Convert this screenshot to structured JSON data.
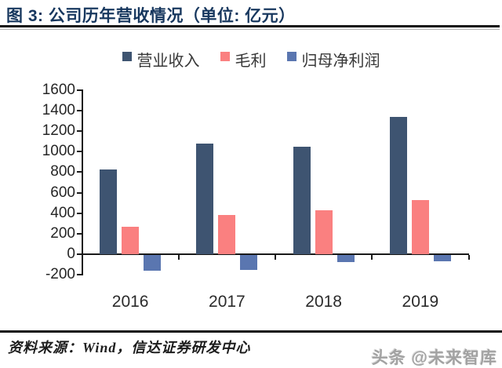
{
  "header": {
    "title": "图 3:  公司历年营收情况（单位:  亿元）",
    "title_color": "#17375E"
  },
  "chart_data": {
    "type": "bar",
    "title": "公司历年营收情况（单位: 亿元）",
    "categories": [
      "2016",
      "2017",
      "2018",
      "2019"
    ],
    "series": [
      {
        "key": "revenue",
        "name": "营业收入",
        "color": "#3E5471",
        "values": [
          830,
          1080,
          1050,
          1340
        ]
      },
      {
        "key": "gross-profit",
        "name": "毛利",
        "color": "#FA8080",
        "values": [
          270,
          380,
          430,
          530
        ]
      },
      {
        "key": "net-profit",
        "name": "归母净利润",
        "color": "#5A76B0",
        "values": [
          -150,
          -140,
          -65,
          -55
        ]
      }
    ],
    "xlabel": "",
    "ylabel": "",
    "ylim": [
      -200,
      1600
    ],
    "ytick_step": 200,
    "grid": false,
    "legend_position": "top",
    "axis_color": "#1a1a1a"
  },
  "footer": {
    "source": "资料来源：Wind，信达证券研发中心",
    "watermark": "头条 @未来智库"
  }
}
